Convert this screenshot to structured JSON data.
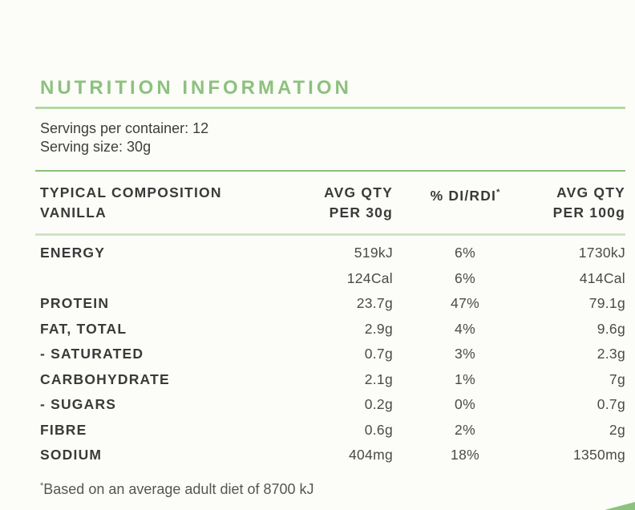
{
  "page": {
    "background": "#fcfdf8",
    "accent_green": "#8cc17e",
    "rule_colors": {
      "title_rule": "#b3d8a6",
      "mid_rule": "#8abf7b",
      "light_rule": "#cde4c4"
    }
  },
  "title": "NUTRITION INFORMATION",
  "servings": {
    "per_container": "Servings per container: 12",
    "size": "Serving size: 30g"
  },
  "table": {
    "headers": {
      "composition_line1": "TYPICAL COMPOSITION",
      "composition_line2": "VANILLA",
      "qty30_line1": "AVG QTY",
      "qty30_line2": "PER 30g",
      "di_label": "% DI/RDI",
      "di_sup": "*",
      "qty100_line1": "AVG QTY",
      "qty100_line2": "PER 100g"
    },
    "rows": [
      {
        "label": "ENERGY",
        "qty30": "519kJ",
        "di": "6%",
        "qty100": "1730kJ"
      },
      {
        "label": "",
        "qty30": "124Cal",
        "di": "6%",
        "qty100": "414Cal"
      },
      {
        "label": "PROTEIN",
        "qty30": "23.7g",
        "di": "47%",
        "qty100": "79.1g"
      },
      {
        "label": "FAT, TOTAL",
        "qty30": "2.9g",
        "di": "4%",
        "qty100": "9.6g"
      },
      {
        "label": "- SATURATED",
        "qty30": "0.7g",
        "di": "3%",
        "qty100": "2.3g"
      },
      {
        "label": "CARBOHYDRATE",
        "qty30": "2.1g",
        "di": "1%",
        "qty100": "7g"
      },
      {
        "label": "- SUGARS",
        "qty30": "0.2g",
        "di": "0%",
        "qty100": "0.7g"
      },
      {
        "label": "FIBRE",
        "qty30": "0.6g",
        "di": "2%",
        "qty100": "2g"
      },
      {
        "label": "SODIUM",
        "qty30": "404mg",
        "di": "18%",
        "qty100": "1350mg"
      }
    ]
  },
  "footnote": {
    "sup": "*",
    "text": "Based on an average adult diet of 8700 kJ"
  }
}
